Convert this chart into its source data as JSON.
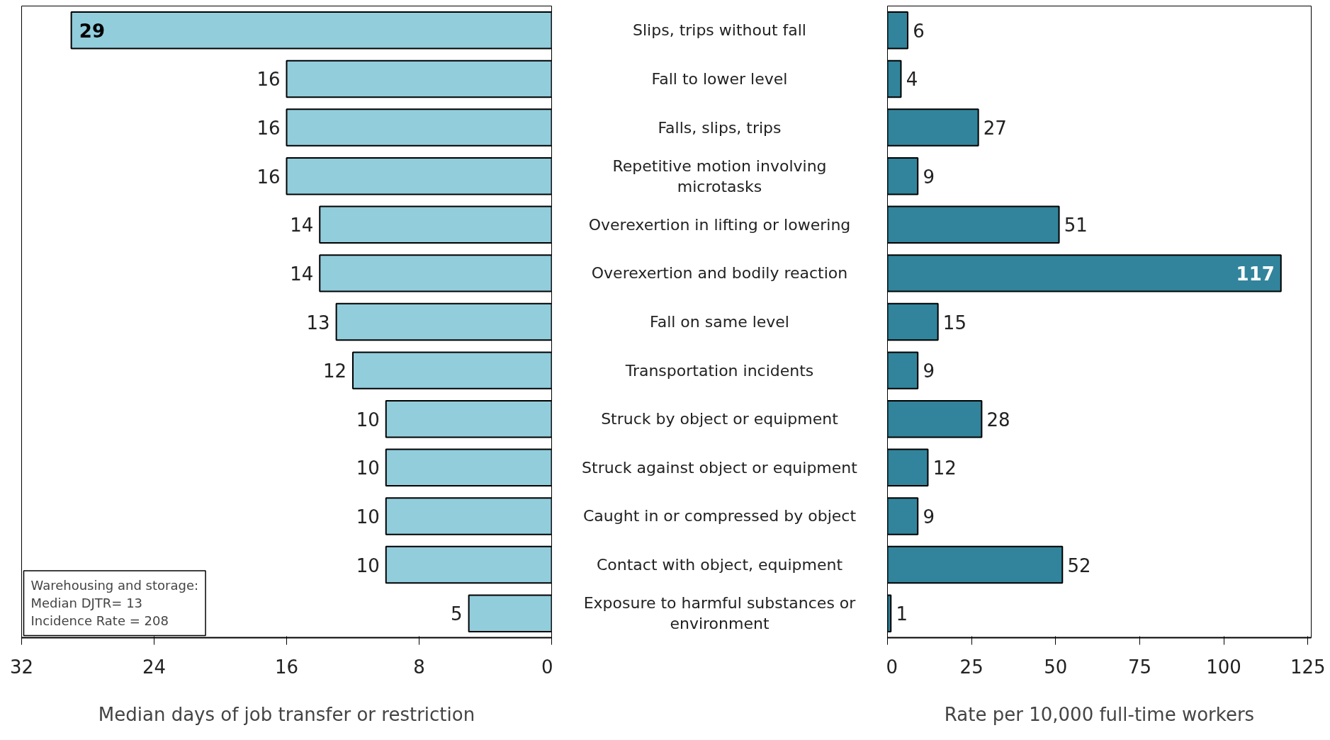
{
  "chart_data": [
    {
      "type": "bar",
      "orientation": "horizontal",
      "xlabel": "Median days of job transfer or restriction",
      "categories": [
        "Slips, trips without fall",
        "Fall to lower level",
        "Falls, slips, trips",
        "Repetitive motion involving microtasks",
        "Overexertion in lifting or lowering",
        "Overexertion and bodily reaction",
        "Fall on same level",
        "Transportation incidents",
        "Struck by object or equipment",
        "Struck against object or equipment",
        "Caught in or compressed by object",
        "Contact with object, equipment",
        "Exposure to harmful substances or environment"
      ],
      "values": [
        29,
        16,
        16,
        16,
        14,
        14,
        13,
        12,
        10,
        10,
        10,
        10,
        5
      ],
      "color": "#92cddc",
      "xlim": [
        32,
        0
      ],
      "xticks": [
        32,
        24,
        16,
        8,
        0
      ],
      "data_labels": true,
      "tick_labels": "x",
      "grid": false,
      "annotations": [
        "Warehousing and storage:\nMedian DJTR= 13\nIncidence Rate = 208"
      ]
    },
    {
      "type": "bar",
      "orientation": "horizontal",
      "xlabel": "Rate per 10,000 full-time workers",
      "categories": [
        "Slips, trips without fall",
        "Fall to lower level",
        "Falls, slips, trips",
        "Repetitive motion involving microtasks",
        "Overexertion in lifting or lowering",
        "Overexertion and bodily reaction",
        "Fall on same level",
        "Transportation incidents",
        "Struck by object or equipment",
        "Struck against object or equipment",
        "Caught in or compressed by object",
        "Contact with object, equipment",
        "Exposure to harmful substances or environment"
      ],
      "values": [
        6,
        4,
        27,
        9,
        51,
        117,
        15,
        9,
        28,
        12,
        9,
        52,
        1
      ],
      "color": "#31849b",
      "xlim": [
        0,
        126
      ],
      "xticks": [
        0,
        25,
        50,
        75,
        100,
        125
      ],
      "data_labels": true,
      "tick_labels": "x",
      "grid": false
    }
  ]
}
